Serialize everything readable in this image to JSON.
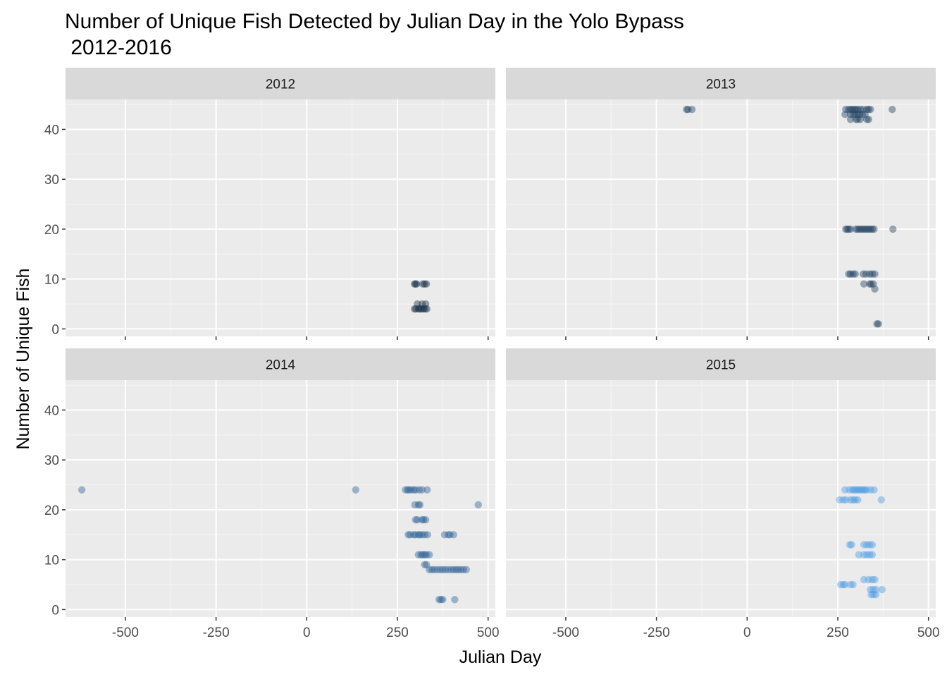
{
  "chart_data": {
    "type": "scatter",
    "title": "Number of Unique Fish Detected by Julian Day in the Yolo Bypass\n 2012-2016",
    "xlabel": "Julian Day",
    "ylabel": "Number of Unique Fish",
    "xlim": [
      -665,
      520
    ],
    "ylim": [
      -1.5,
      46
    ],
    "xticks": [
      -500,
      -250,
      0,
      250,
      500
    ],
    "yticks": [
      0,
      10,
      20,
      30,
      40
    ],
    "grid": true,
    "legend": "none",
    "panels": [
      {
        "label": "2012",
        "color": "#132b43",
        "points": [
          [
            297,
            9
          ],
          [
            300,
            9
          ],
          [
            303,
            9
          ],
          [
            320,
            9
          ],
          [
            325,
            9
          ],
          [
            330,
            9
          ],
          [
            305,
            5
          ],
          [
            318,
            5
          ],
          [
            328,
            5
          ],
          [
            297,
            4
          ],
          [
            301,
            4
          ],
          [
            308,
            4
          ],
          [
            312,
            4
          ],
          [
            316,
            4
          ],
          [
            322,
            4
          ],
          [
            326,
            4
          ],
          [
            331,
            4
          ]
        ]
      },
      {
        "label": "2013",
        "color": "#1d3e5f",
        "points": [
          [
            -167,
            44
          ],
          [
            -163,
            44
          ],
          [
            -152,
            44
          ],
          [
            272,
            44
          ],
          [
            280,
            44
          ],
          [
            285,
            44
          ],
          [
            290,
            44
          ],
          [
            295,
            44
          ],
          [
            300,
            44
          ],
          [
            305,
            44
          ],
          [
            312,
            44
          ],
          [
            320,
            44
          ],
          [
            330,
            44
          ],
          [
            335,
            44
          ],
          [
            340,
            44
          ],
          [
            400,
            44
          ],
          [
            270,
            43
          ],
          [
            285,
            43
          ],
          [
            292,
            43
          ],
          [
            298,
            43
          ],
          [
            305,
            43
          ],
          [
            310,
            43
          ],
          [
            318,
            43
          ],
          [
            325,
            43
          ],
          [
            285,
            42
          ],
          [
            300,
            42
          ],
          [
            305,
            42
          ],
          [
            312,
            42
          ],
          [
            330,
            42
          ],
          [
            335,
            42
          ],
          [
            272,
            20
          ],
          [
            276,
            20
          ],
          [
            280,
            20
          ],
          [
            285,
            20
          ],
          [
            300,
            20
          ],
          [
            305,
            20
          ],
          [
            310,
            20
          ],
          [
            315,
            20
          ],
          [
            320,
            20
          ],
          [
            325,
            20
          ],
          [
            330,
            20
          ],
          [
            335,
            20
          ],
          [
            340,
            20
          ],
          [
            345,
            20
          ],
          [
            350,
            20
          ],
          [
            402,
            20
          ],
          [
            280,
            11
          ],
          [
            285,
            11
          ],
          [
            292,
            11
          ],
          [
            298,
            11
          ],
          [
            320,
            11
          ],
          [
            328,
            11
          ],
          [
            338,
            11
          ],
          [
            345,
            11
          ],
          [
            352,
            11
          ],
          [
            322,
            9
          ],
          [
            338,
            9
          ],
          [
            342,
            9
          ],
          [
            348,
            9
          ],
          [
            352,
            8
          ],
          [
            358,
            1
          ],
          [
            362,
            1
          ]
        ]
      },
      {
        "label": "2014",
        "color": "#2c5f94",
        "points": [
          [
            -620,
            24
          ],
          [
            135,
            24
          ],
          [
            272,
            24
          ],
          [
            278,
            24
          ],
          [
            282,
            24
          ],
          [
            288,
            24
          ],
          [
            295,
            24
          ],
          [
            300,
            24
          ],
          [
            310,
            24
          ],
          [
            318,
            24
          ],
          [
            332,
            24
          ],
          [
            298,
            21
          ],
          [
            308,
            21
          ],
          [
            312,
            21
          ],
          [
            473,
            21
          ],
          [
            300,
            18
          ],
          [
            305,
            18
          ],
          [
            318,
            18
          ],
          [
            322,
            18
          ],
          [
            328,
            18
          ],
          [
            280,
            15
          ],
          [
            285,
            15
          ],
          [
            295,
            15
          ],
          [
            300,
            15
          ],
          [
            308,
            15
          ],
          [
            312,
            15
          ],
          [
            318,
            15
          ],
          [
            325,
            15
          ],
          [
            333,
            15
          ],
          [
            380,
            15
          ],
          [
            390,
            15
          ],
          [
            395,
            15
          ],
          [
            405,
            15
          ],
          [
            308,
            11
          ],
          [
            315,
            11
          ],
          [
            320,
            11
          ],
          [
            325,
            11
          ],
          [
            330,
            11
          ],
          [
            338,
            11
          ],
          [
            325,
            9
          ],
          [
            330,
            9
          ],
          [
            338,
            8
          ],
          [
            345,
            8
          ],
          [
            352,
            8
          ],
          [
            360,
            8
          ],
          [
            368,
            8
          ],
          [
            375,
            8
          ],
          [
            382,
            8
          ],
          [
            390,
            8
          ],
          [
            398,
            8
          ],
          [
            405,
            8
          ],
          [
            412,
            8
          ],
          [
            418,
            8
          ],
          [
            425,
            8
          ],
          [
            432,
            8
          ],
          [
            440,
            8
          ],
          [
            365,
            2
          ],
          [
            370,
            2
          ],
          [
            375,
            2
          ],
          [
            408,
            2
          ]
        ]
      },
      {
        "label": "2015",
        "color": "#4a9ce5",
        "points": [
          [
            270,
            24
          ],
          [
            282,
            24
          ],
          [
            290,
            24
          ],
          [
            295,
            24
          ],
          [
            300,
            24
          ],
          [
            305,
            24
          ],
          [
            310,
            24
          ],
          [
            315,
            24
          ],
          [
            320,
            24
          ],
          [
            325,
            24
          ],
          [
            330,
            24
          ],
          [
            340,
            24
          ],
          [
            350,
            24
          ],
          [
            255,
            22
          ],
          [
            265,
            22
          ],
          [
            272,
            22
          ],
          [
            285,
            22
          ],
          [
            292,
            22
          ],
          [
            298,
            22
          ],
          [
            305,
            22
          ],
          [
            370,
            22
          ],
          [
            283,
            13
          ],
          [
            288,
            13
          ],
          [
            322,
            13
          ],
          [
            330,
            13
          ],
          [
            338,
            13
          ],
          [
            345,
            13
          ],
          [
            308,
            11
          ],
          [
            322,
            11
          ],
          [
            330,
            11
          ],
          [
            338,
            11
          ],
          [
            345,
            11
          ],
          [
            322,
            6
          ],
          [
            335,
            6
          ],
          [
            345,
            6
          ],
          [
            352,
            6
          ],
          [
            340,
            4
          ],
          [
            348,
            4
          ],
          [
            355,
            4
          ],
          [
            372,
            4
          ],
          [
            258,
            5
          ],
          [
            265,
            5
          ],
          [
            270,
            5
          ],
          [
            285,
            5
          ],
          [
            292,
            5
          ],
          [
            342,
            3
          ],
          [
            348,
            3
          ],
          [
            355,
            3
          ]
        ]
      }
    ]
  }
}
